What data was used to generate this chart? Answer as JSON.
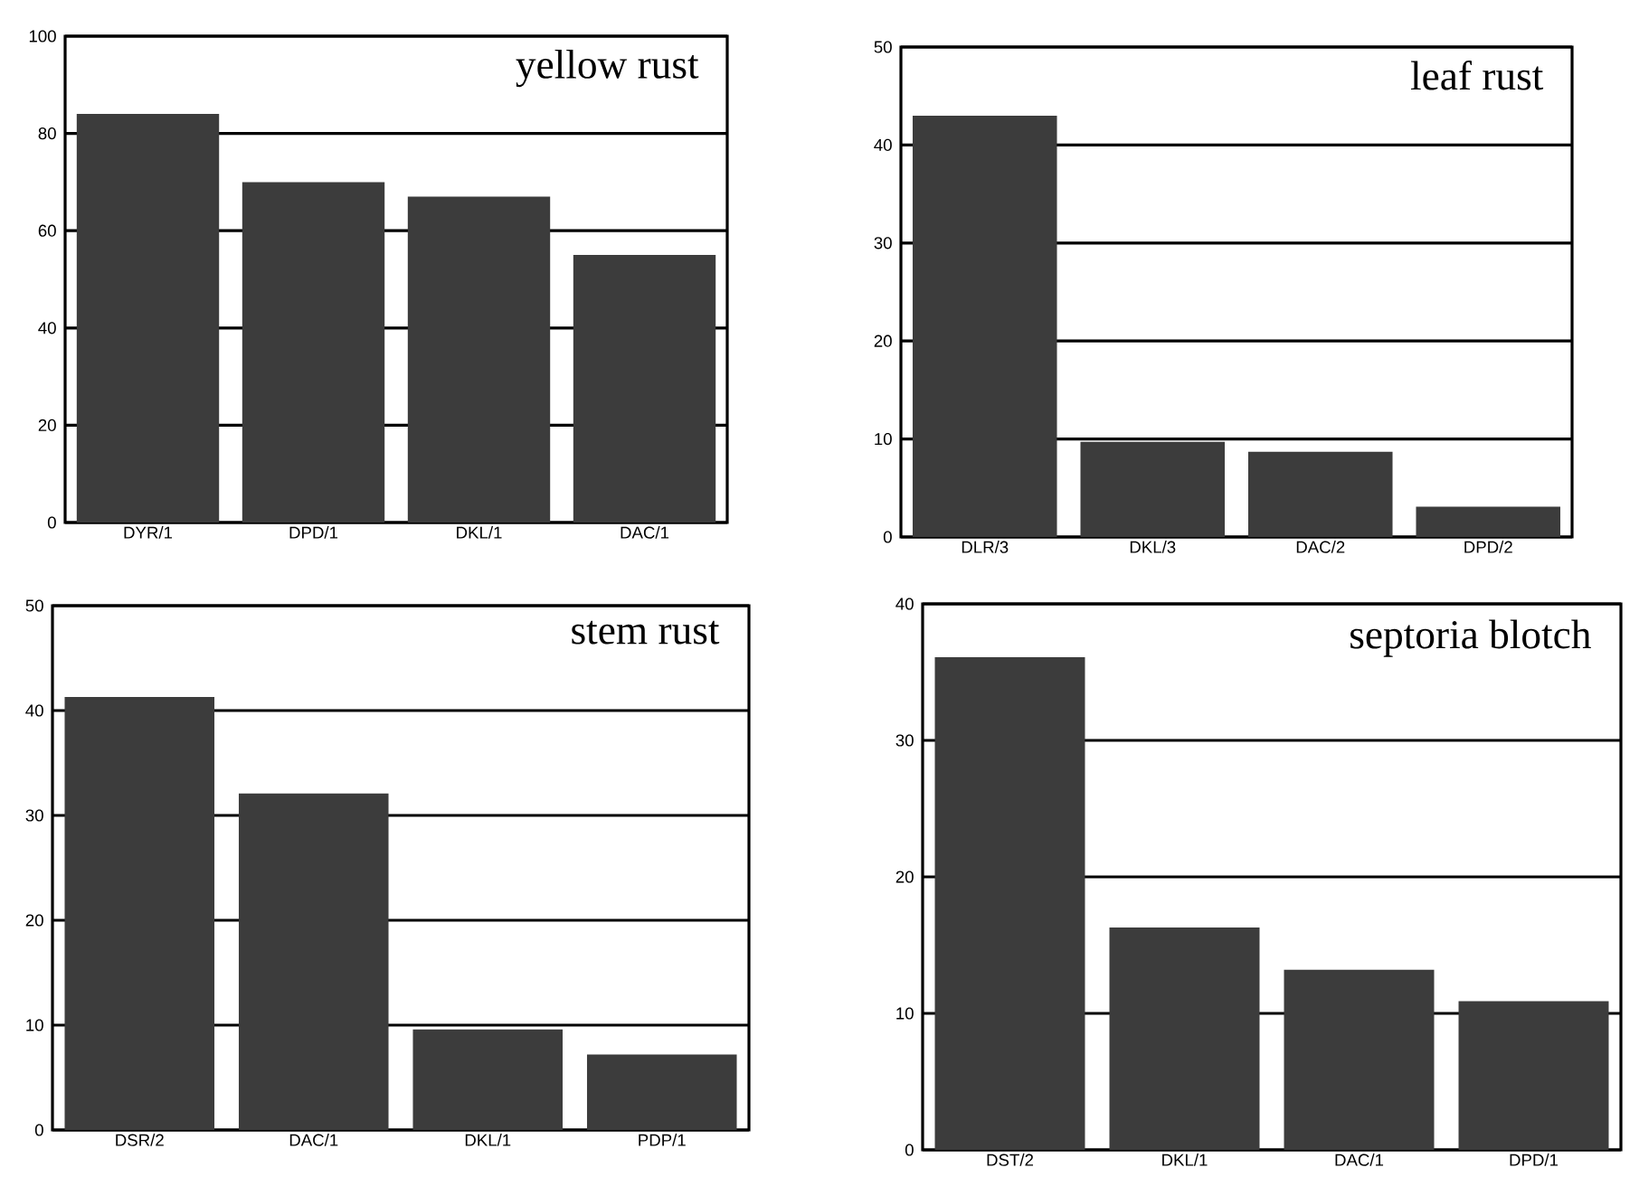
{
  "chart_data": [
    {
      "type": "bar",
      "title": "yellow rust",
      "categories": [
        "DYR/1",
        "DPD/1",
        "DKL/1",
        "DAC/1"
      ],
      "values": [
        84,
        70,
        67,
        55
      ],
      "color": "#3c3c3c",
      "ylim": [
        0,
        100
      ],
      "yticks": [
        0,
        20,
        40,
        60,
        80,
        100
      ],
      "grid": "y"
    },
    {
      "type": "bar",
      "title": "leaf rust",
      "categories": [
        "DLR/3",
        "DKL/3",
        "DAC/2",
        "DPD/2"
      ],
      "values": [
        43,
        9.7,
        8.7,
        3.1
      ],
      "color": "#3c3c3c",
      "ylim": [
        0,
        50
      ],
      "yticks": [
        0,
        10,
        20,
        30,
        40,
        50
      ],
      "grid": "y"
    },
    {
      "type": "bar",
      "title": "stem rust",
      "categories": [
        "DSR/2",
        "DAC/1",
        "DKL/1",
        "PDP/1"
      ],
      "values": [
        41.3,
        32.1,
        9.6,
        7.2
      ],
      "color": "#3c3c3c",
      "ylim": [
        0,
        50
      ],
      "yticks": [
        0,
        10,
        20,
        30,
        40,
        50
      ],
      "grid": "y"
    },
    {
      "type": "bar",
      "title": "septoria blotch",
      "categories": [
        "DST/2",
        "DKL/1",
        "DAC/1",
        "DPD/1"
      ],
      "values": [
        36.1,
        16.3,
        13.2,
        10.9
      ],
      "color": "#3c3c3c",
      "ylim": [
        0,
        40
      ],
      "yticks": [
        0,
        10,
        20,
        30,
        40
      ],
      "grid": "y"
    }
  ]
}
